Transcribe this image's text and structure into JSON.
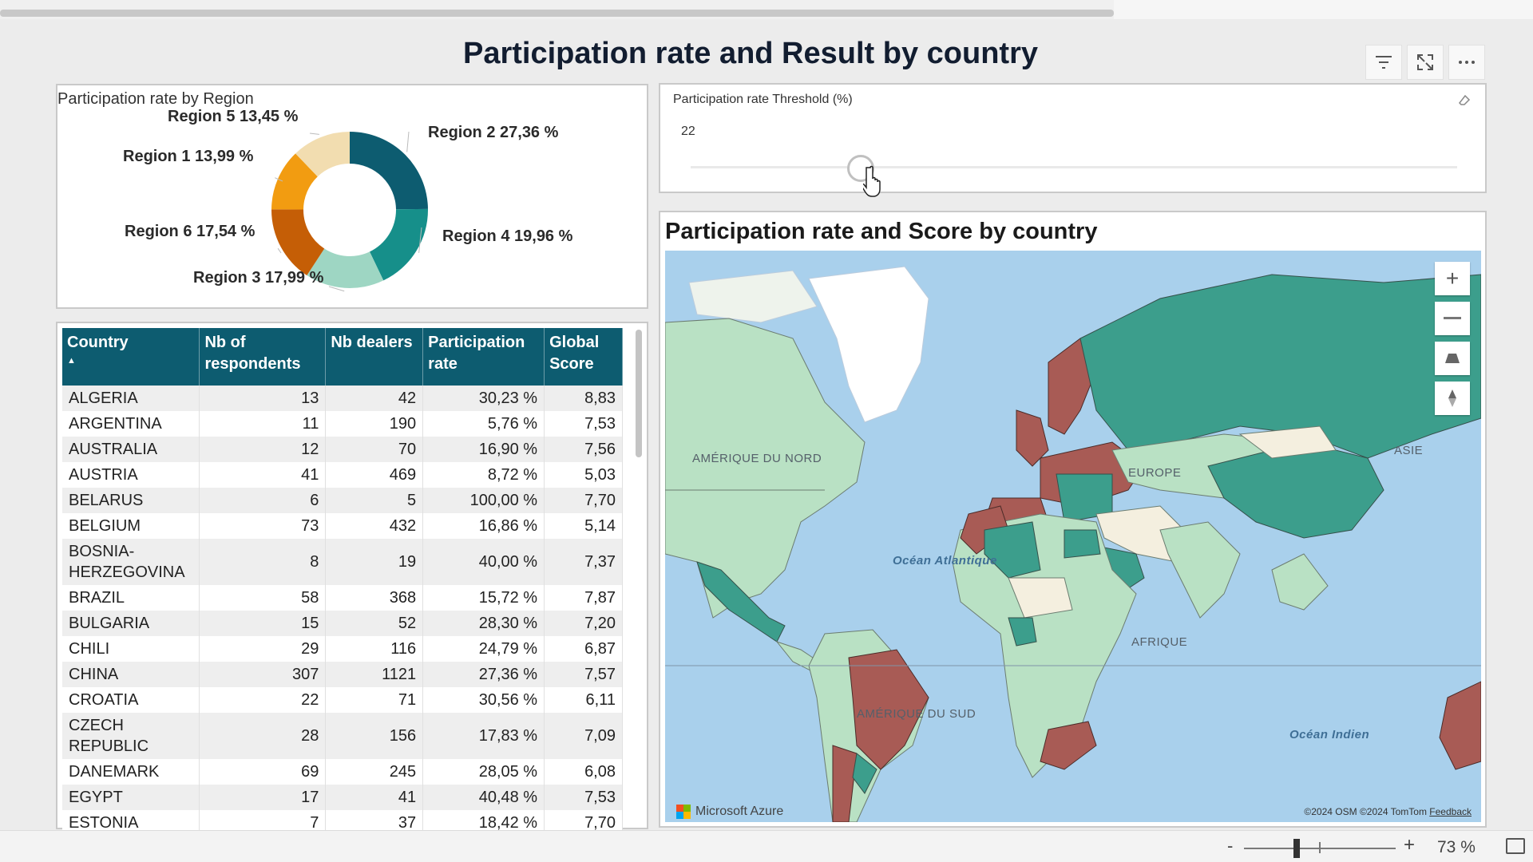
{
  "report": {
    "title": "Participation rate and Result by country"
  },
  "header_icons": [
    "filter-icon",
    "focus-mode-icon",
    "more-options-icon"
  ],
  "donut": {
    "title": "Participation rate by Region",
    "chart_data": {
      "type": "pie",
      "slices": [
        {
          "label": "Region 2 27,36 %",
          "name": "Region 2",
          "value": 27.36,
          "color": "#0d5c70"
        },
        {
          "label": "Region 4 19,96 %",
          "name": "Region 4",
          "value": 19.96,
          "color": "#168f8a"
        },
        {
          "label": "Region 3 17,99 %",
          "name": "Region 3",
          "value": 17.99,
          "color": "#9ed6c3"
        },
        {
          "label": "Region 6 17,54 %",
          "name": "Region 6",
          "value": 17.54,
          "color": "#c55e06"
        },
        {
          "label": "Region 1 13,99 %",
          "name": "Region 1",
          "value": 13.99,
          "color": "#f29c11"
        },
        {
          "label": "Region 5 13,45 %",
          "name": "Region 5",
          "value": 13.45,
          "color": "#f2ddb0"
        }
      ]
    }
  },
  "slicer": {
    "title": "Participation rate Threshold (%)",
    "value": "22",
    "level": 22
  },
  "map": {
    "title": "Participation rate and Score by country",
    "labels": {
      "north_america": "AMÉRIQUE DU NORD",
      "europe": "EUROPE",
      "asia": "ASIE",
      "atlantic": "Océan Atlantique",
      "africa": "AFRIQUE",
      "south_america": "AMÉRIQUE DU SUD",
      "indian": "Océan Indien"
    },
    "controls": [
      "zoom-in",
      "zoom-out",
      "tilt",
      "rotate"
    ],
    "zoom_in_label": "+",
    "brand": "Microsoft Azure",
    "attribution_osm": "©2024 OSM",
    "attribution_tomtom": "©2024 TomTom",
    "feedback": "Feedback"
  },
  "table": {
    "headers": [
      "Country",
      "Nb of respondents",
      "Nb dealers",
      "Participation rate",
      "Global Score"
    ],
    "rows": [
      [
        "ALGERIA",
        "13",
        "42",
        "30,23 %",
        "8,83"
      ],
      [
        "ARGENTINA",
        "11",
        "190",
        "5,76 %",
        "7,53"
      ],
      [
        "AUSTRALIA",
        "12",
        "70",
        "16,90 %",
        "7,56"
      ],
      [
        "AUSTRIA",
        "41",
        "469",
        "8,72 %",
        "5,03"
      ],
      [
        "BELARUS",
        "6",
        "5",
        "100,00 %",
        "7,70"
      ],
      [
        "BELGIUM",
        "73",
        "432",
        "16,86 %",
        "5,14"
      ],
      [
        "BOSNIA-HERZEGOVINA",
        "8",
        "19",
        "40,00 %",
        "7,37"
      ],
      [
        "BRAZIL",
        "58",
        "368",
        "15,72 %",
        "7,87"
      ],
      [
        "BULGARIA",
        "15",
        "52",
        "28,30 %",
        "7,20"
      ],
      [
        "CHILI",
        "29",
        "116",
        "24,79 %",
        "6,87"
      ],
      [
        "CHINA",
        "307",
        "1121",
        "27,36 %",
        "7,57"
      ],
      [
        "CROATIA",
        "22",
        "71",
        "30,56 %",
        "6,11"
      ],
      [
        "CZECH REPUBLIC",
        "28",
        "156",
        "17,83 %",
        "7,09"
      ],
      [
        "DANEMARK",
        "69",
        "245",
        "28,05 %",
        "6,08"
      ],
      [
        "EGYPT",
        "17",
        "41",
        "40,48 %",
        "7,53"
      ],
      [
        "ESTONIA",
        "7",
        "37",
        "18,42 %",
        "7,70"
      ]
    ]
  },
  "statusbar": {
    "zoom_minus": "-",
    "zoom_plus": "+",
    "zoom_value": "73 %",
    "zoom_level": 73
  },
  "colors": {
    "header_bg": "#0d5c70",
    "map_high": "#3c9e8c",
    "map_low": "#a85b55",
    "map_light": "#b9e1c4",
    "ocean": "#a9d0ec"
  }
}
